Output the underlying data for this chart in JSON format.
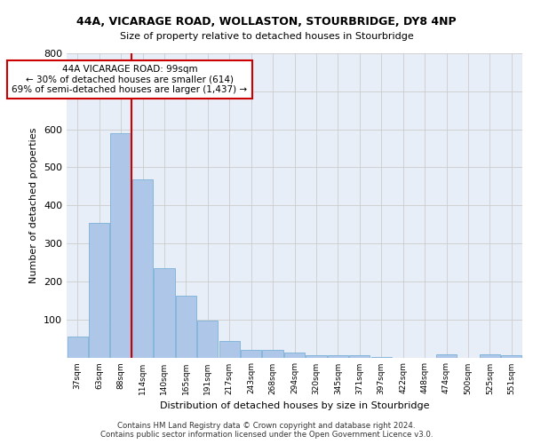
{
  "title_line1": "44A, VICARAGE ROAD, WOLLASTON, STOURBRIDGE, DY8 4NP",
  "title_line2": "Size of property relative to detached houses in Stourbridge",
  "xlabel": "Distribution of detached houses by size in Stourbridge",
  "ylabel": "Number of detached properties",
  "categories": [
    "37sqm",
    "63sqm",
    "88sqm",
    "114sqm",
    "140sqm",
    "165sqm",
    "191sqm",
    "217sqm",
    "243sqm",
    "268sqm",
    "294sqm",
    "320sqm",
    "345sqm",
    "371sqm",
    "397sqm",
    "422sqm",
    "448sqm",
    "474sqm",
    "500sqm",
    "525sqm",
    "551sqm"
  ],
  "bar_heights": [
    55,
    355,
    590,
    468,
    234,
    162,
    96,
    44,
    20,
    19,
    14,
    6,
    6,
    5,
    2,
    0,
    0,
    8,
    0,
    8,
    6
  ],
  "bar_color": "#aec6e8",
  "bar_edge_color": "#6aaad4",
  "grid_color": "#cccccc",
  "bg_color": "#e8eef7",
  "annotation_text": "44A VICARAGE ROAD: 99sqm\n← 30% of detached houses are smaller (614)\n69% of semi-detached houses are larger (1,437) →",
  "annotation_box_color": "#ffffff",
  "annotation_box_edge": "#cc0000",
  "vline_x_index": 2,
  "vline_color": "#cc0000",
  "ylim": [
    0,
    800
  ],
  "yticks": [
    100,
    200,
    300,
    400,
    500,
    600,
    700,
    800
  ],
  "footer_line1": "Contains HM Land Registry data © Crown copyright and database right 2024.",
  "footer_line2": "Contains public sector information licensed under the Open Government Licence v3.0."
}
